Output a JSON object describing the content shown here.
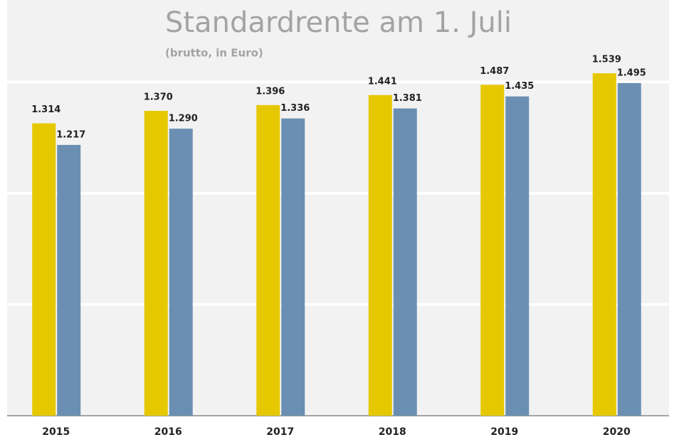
{
  "chart_data": {
    "type": "bar",
    "title": "Standardrente am 1. Juli",
    "subtitle": "(brutto, in Euro)",
    "categories": [
      "2015",
      "2016",
      "2017",
      "2018",
      "2019",
      "2020"
    ],
    "series": [
      {
        "color": "#e6c800",
        "values": [
          1314,
          1370,
          1396,
          1441,
          1487,
          1539
        ],
        "value_labels": [
          "1.314",
          "1.370",
          "1.396",
          "1.441",
          "1.487",
          "1.539"
        ]
      },
      {
        "color": "#6a8fb2",
        "values": [
          1217,
          1290,
          1336,
          1381,
          1435,
          1495
        ],
        "value_labels": [
          "1.217",
          "1.290",
          "1.336",
          "1.381",
          "1.435",
          "1.495"
        ]
      }
    ],
    "ylim": [
      0,
      1600
    ],
    "yticks": [
      0,
      500,
      1000,
      1500
    ],
    "grid": true
  }
}
